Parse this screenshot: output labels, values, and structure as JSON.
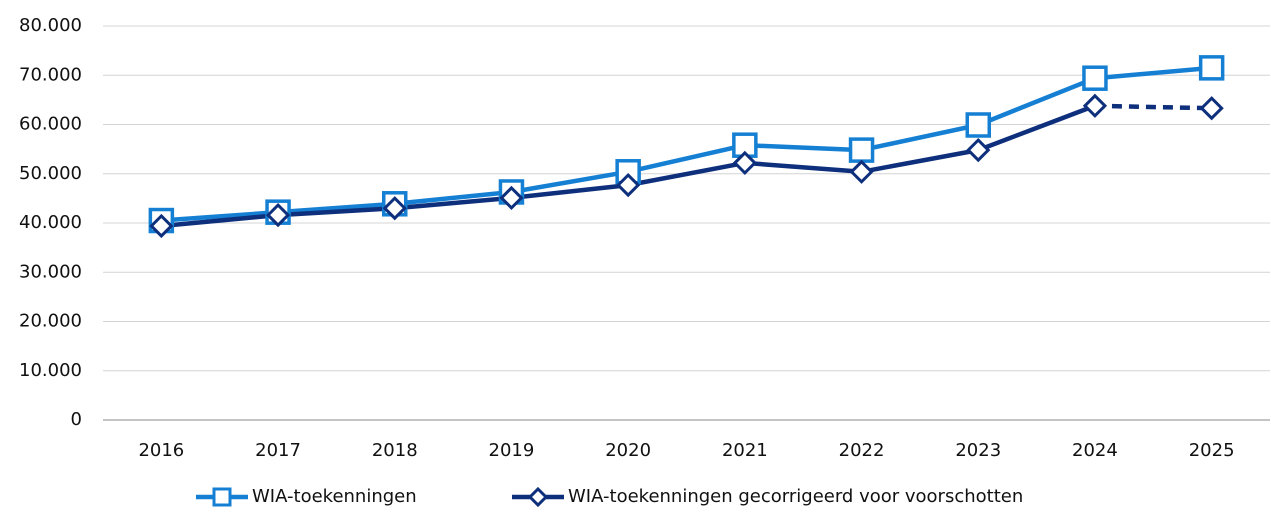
{
  "chart_data": {
    "type": "line",
    "categories": [
      "2016",
      "2017",
      "2018",
      "2019",
      "2020",
      "2021",
      "2022",
      "2023",
      "2024",
      "2025"
    ],
    "series": [
      {
        "name": "WIA-toekenningen",
        "color": "#1580d3",
        "marker": "square",
        "values": [
          40500,
          42200,
          43900,
          46300,
          50400,
          55800,
          54800,
          59900,
          69400,
          71500
        ]
      },
      {
        "name": "WIA-toekenningen gecorrigeerd voor voorschotten",
        "color": "#0e2f7c",
        "marker": "diamond",
        "dash_from": 8,
        "values": [
          39400,
          41600,
          43000,
          45100,
          47700,
          52200,
          50400,
          54800,
          63800,
          63300
        ]
      }
    ],
    "ylim": [
      0,
      80000
    ],
    "yticks": [
      0,
      {
        "value": 10000,
        "label": "10.000"
      },
      {
        "value": 20000,
        "label": "20.000"
      },
      {
        "value": 30000,
        "label": "30.000"
      },
      {
        "value": 40000,
        "label": "40.000"
      },
      {
        "value": 50000,
        "label": "50.000"
      },
      {
        "value": 60000,
        "label": "60.000"
      },
      {
        "value": 70000,
        "label": "70.000"
      },
      {
        "value": 80000,
        "label": "80.000"
      }
    ],
    "grid": true,
    "legend": "bottom"
  }
}
